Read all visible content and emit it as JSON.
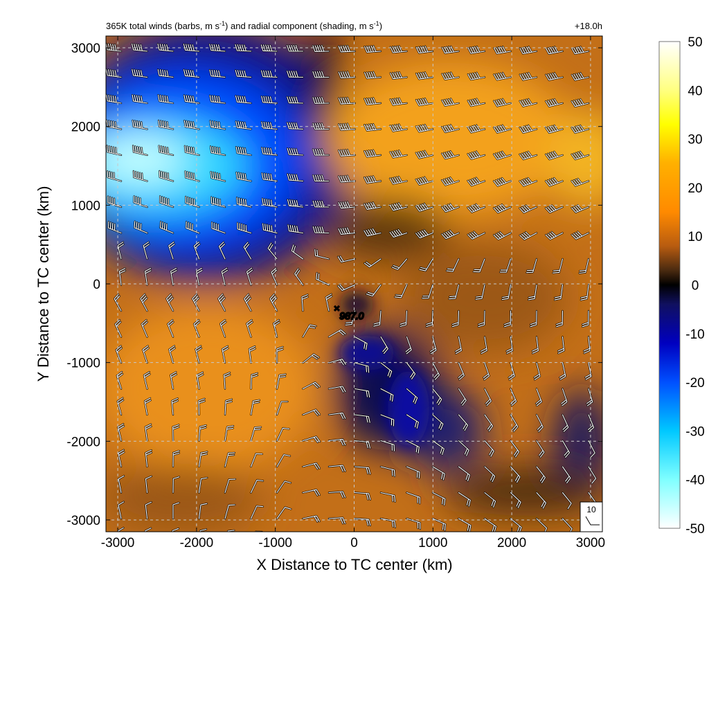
{
  "header": {
    "title_parts": [
      "365K total winds (barbs, m s",
      "-1",
      ") and radial component (shading, m s",
      "-1",
      ")"
    ],
    "time_label": "+18.0h"
  },
  "chart_data": {
    "type": "heatmap",
    "title": "365K total winds (barbs, m s-1) and radial component (shading, m s-1)",
    "xlabel": "X Distance to TC center (km)",
    "ylabel": "Y Distance to TC center (km)",
    "xlim": [
      -3150,
      3150
    ],
    "ylim": [
      -3150,
      3150
    ],
    "x_ticks": [
      -3000,
      -2000,
      -1000,
      0,
      1000,
      2000,
      3000
    ],
    "y_ticks": [
      -3000,
      -2000,
      -1000,
      0,
      1000,
      2000,
      3000
    ],
    "grid": true,
    "colorbar": {
      "ticks": [
        50,
        40,
        30,
        20,
        10,
        0,
        -10,
        -20,
        -30,
        -40,
        -50
      ],
      "range": [
        -50,
        50
      ],
      "stops": [
        {
          "value": 50,
          "color": "#ffffff"
        },
        {
          "value": 40,
          "color": "#ffff80"
        },
        {
          "value": 33,
          "color": "#ffff00"
        },
        {
          "value": 25,
          "color": "#ffb000"
        },
        {
          "value": 15,
          "color": "#ff8a00"
        },
        {
          "value": 8,
          "color": "#b85c10"
        },
        {
          "value": 3,
          "color": "#4a2a10"
        },
        {
          "value": 0,
          "color": "#000000"
        },
        {
          "value": -4,
          "color": "#101060"
        },
        {
          "value": -12,
          "color": "#0000c0"
        },
        {
          "value": -20,
          "color": "#0050ff"
        },
        {
          "value": -30,
          "color": "#00c8ff"
        },
        {
          "value": -40,
          "color": "#80ffff"
        },
        {
          "value": -50,
          "color": "#ffffff"
        }
      ]
    },
    "features": [
      {
        "kind": "outflow-jet",
        "x": -2000,
        "y": 1700,
        "value": -45
      },
      {
        "kind": "outflow-jet",
        "x": 1200,
        "y": 1800,
        "value": 28
      },
      {
        "kind": "inflow-band",
        "x": -2200,
        "y": -1200,
        "value": 14
      },
      {
        "kind": "inflow-region",
        "x": 800,
        "y": -1500,
        "value": -12
      }
    ],
    "center_marker": {
      "x": -150,
      "y": -380,
      "label": "987.0"
    },
    "reference_barb": {
      "label": "10"
    }
  }
}
